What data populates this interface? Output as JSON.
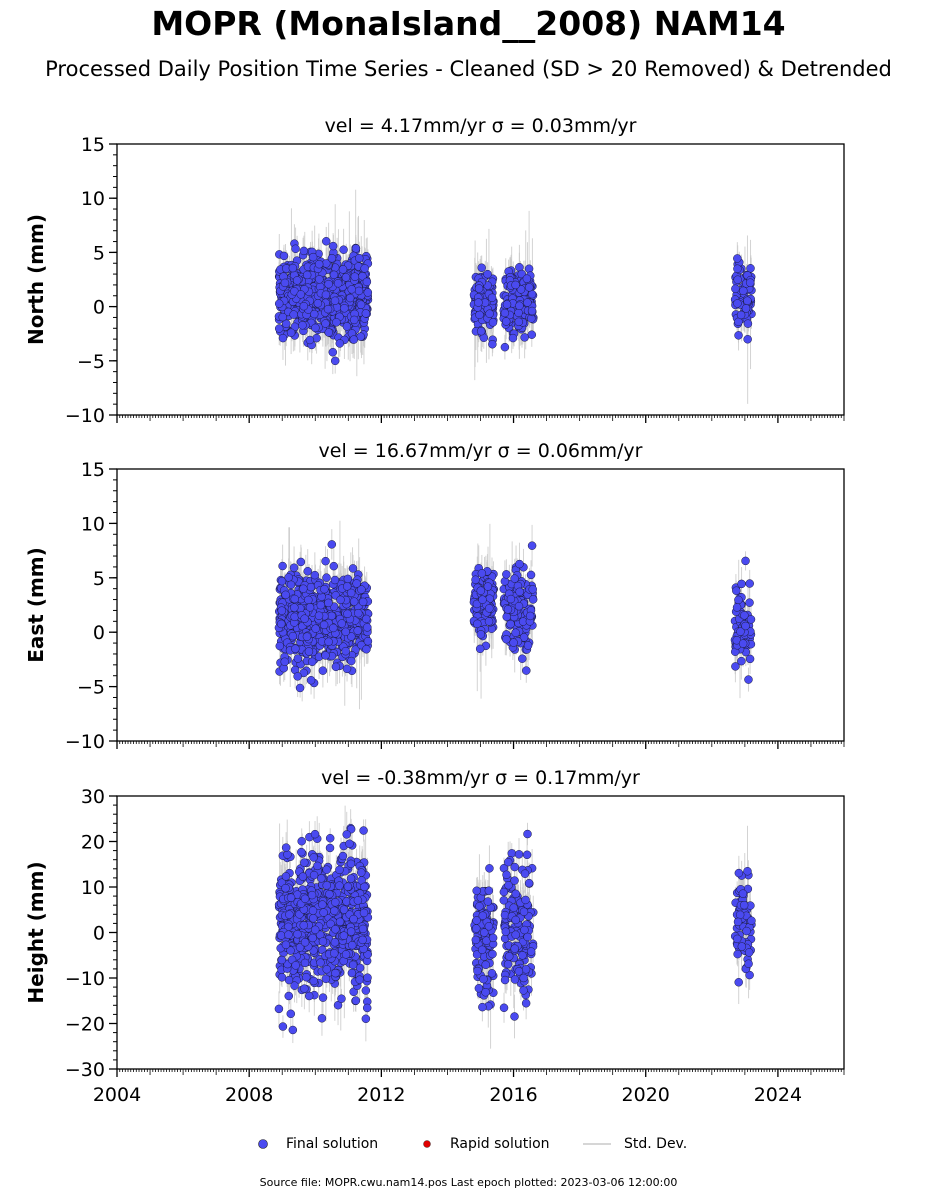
{
  "header": {
    "title": "MOPR (MonaIsland__2008) NAM14",
    "subtitle": "Processed Daily Position Time Series - Cleaned (SD > 20 Removed) & Detrended"
  },
  "legend": {
    "final_label": "Final solution",
    "rapid_label": "Rapid solution",
    "std_label": "Std. Dev."
  },
  "footer": {
    "source": "Source file: MOPR.cwu.nam14.pos  Last epoch plotted: 2023-03-06 12:00:00"
  },
  "colors": {
    "final": "#4a4af0",
    "rapid": "#e00000",
    "std": "#c8c8c8"
  },
  "chart_data": [
    {
      "type": "scatter",
      "title": "vel = 4.17mm/yr   σ = 0.03mm/yr",
      "ylabel": "North (mm)",
      "xlim": [
        2004,
        2026
      ],
      "ylim": [
        -10,
        15
      ],
      "yticks": [
        "15",
        "10",
        "5",
        "0",
        "−5",
        "−10"
      ],
      "ytick_values": [
        15,
        10,
        5,
        0,
        -5,
        -10
      ],
      "clusters": [
        {
          "x": [
            2008.9,
            2011.6
          ],
          "center": 1.0,
          "spread": 1.8,
          "n": 700
        },
        {
          "x": [
            2014.8,
            2015.4
          ],
          "center": 0.3,
          "spread": 1.5,
          "n": 120
        },
        {
          "x": [
            2015.7,
            2016.6
          ],
          "center": 0.5,
          "spread": 1.5,
          "n": 150
        },
        {
          "x": [
            2022.7,
            2023.2
          ],
          "center": 1.0,
          "spread": 1.5,
          "n": 70
        }
      ]
    },
    {
      "type": "scatter",
      "title": "vel = 16.67mm/yr   σ = 0.06mm/yr",
      "ylabel": "East (mm)",
      "xlim": [
        2004,
        2026
      ],
      "ylim": [
        -10,
        15
      ],
      "yticks": [
        "15",
        "10",
        "5",
        "0",
        "−5",
        "−10"
      ],
      "ytick_values": [
        15,
        10,
        5,
        0,
        -5,
        -10
      ],
      "clusters": [
        {
          "x": [
            2008.9,
            2011.6
          ],
          "center": 1.3,
          "spread": 1.9,
          "n": 700
        },
        {
          "x": [
            2014.8,
            2015.4
          ],
          "center": 2.6,
          "spread": 1.6,
          "n": 120
        },
        {
          "x": [
            2015.7,
            2016.6
          ],
          "center": 2.0,
          "spread": 1.8,
          "n": 150
        },
        {
          "x": [
            2022.7,
            2023.2
          ],
          "center": 0.5,
          "spread": 1.6,
          "n": 70
        }
      ]
    },
    {
      "type": "scatter",
      "title": "vel = -0.38mm/yr   σ = 0.17mm/yr",
      "ylabel": "Height (mm)",
      "xlim": [
        2004,
        2026
      ],
      "ylim": [
        -30,
        30
      ],
      "yticks": [
        "30",
        "20",
        "10",
        "0",
        "−10",
        "−20",
        "−30"
      ],
      "ytick_values": [
        30,
        20,
        10,
        0,
        -10,
        -20,
        -30
      ],
      "xticks": [
        "2004",
        "2008",
        "2012",
        "2016",
        "2020",
        "2024"
      ],
      "xtick_values": [
        2004,
        2008,
        2012,
        2016,
        2020,
        2024
      ],
      "clusters": [
        {
          "x": [
            2008.9,
            2011.6
          ],
          "center": 2.0,
          "spread": 7.5,
          "n": 700
        },
        {
          "x": [
            2014.8,
            2015.4
          ],
          "center": -2.0,
          "spread": 6.5,
          "n": 120
        },
        {
          "x": [
            2015.7,
            2016.6
          ],
          "center": 2.0,
          "spread": 8.0,
          "n": 150
        },
        {
          "x": [
            2022.7,
            2023.2
          ],
          "center": 2.0,
          "spread": 6.0,
          "n": 70
        }
      ]
    }
  ]
}
